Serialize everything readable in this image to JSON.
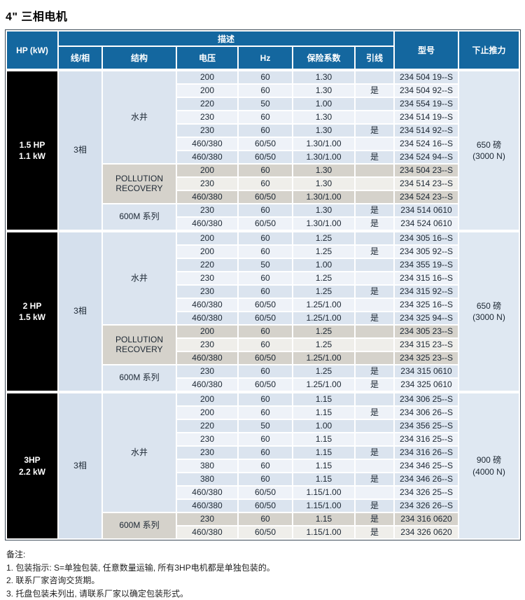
{
  "title": "4\" 三相电机",
  "table": {
    "headers": {
      "hp": "HP (kW)",
      "desc": "描述",
      "wire_phase": "线/相",
      "structure": "结构",
      "voltage": "电压",
      "hz": "Hz",
      "safety_factor": "保险系数",
      "lead": "引线",
      "model": "型号",
      "down_thrust": "下止推力"
    },
    "groups": [
      {
        "hp": "1.5 HP",
        "kw": "1.1 kW",
        "phase": "3相",
        "down_thrust_lb": "650 磅",
        "down_thrust_n": "(3000 N)",
        "blocks": [
          {
            "structure": "水井",
            "theme": "blue",
            "rows": [
              [
                "200",
                "60",
                "1.30",
                "",
                "234 504 19--S"
              ],
              [
                "200",
                "60",
                "1.30",
                "是",
                "234 504 92--S"
              ],
              [
                "220",
                "50",
                "1.00",
                "",
                "234 554 19--S"
              ],
              [
                "230",
                "60",
                "1.30",
                "",
                "234 514 19--S"
              ],
              [
                "230",
                "60",
                "1.30",
                "是",
                "234 514 92--S"
              ],
              [
                "460/380",
                "60/50",
                "1.30/1.00",
                "",
                "234 524 16--S"
              ],
              [
                "460/380",
                "60/50",
                "1.30/1.00",
                "是",
                "234 524 94--S"
              ]
            ]
          },
          {
            "structure": "POLLUTION RECOVERY",
            "theme": "gray",
            "rows": [
              [
                "200",
                "60",
                "1.30",
                "",
                "234 504 23--S"
              ],
              [
                "230",
                "60",
                "1.30",
                "",
                "234 514 23--S"
              ],
              [
                "460/380",
                "60/50",
                "1.30/1.00",
                "",
                "234 524 23--S"
              ]
            ]
          },
          {
            "structure": "600M 系列",
            "theme": "blue",
            "rows": [
              [
                "230",
                "60",
                "1.30",
                "是",
                "234 514 0610"
              ],
              [
                "460/380",
                "60/50",
                "1.30/1.00",
                "是",
                "234 524 0610"
              ]
            ]
          }
        ]
      },
      {
        "hp": "2 HP",
        "kw": "1.5 kW",
        "phase": "3相",
        "down_thrust_lb": "650 磅",
        "down_thrust_n": "(3000 N)",
        "blocks": [
          {
            "structure": "水井",
            "theme": "blue",
            "rows": [
              [
                "200",
                "60",
                "1.25",
                "",
                "234 305 16--S"
              ],
              [
                "200",
                "60",
                "1.25",
                "是",
                "234 305 92--S"
              ],
              [
                "220",
                "50",
                "1.00",
                "",
                "234 355 19--S"
              ],
              [
                "230",
                "60",
                "1.25",
                "",
                "234 315 16--S"
              ],
              [
                "230",
                "60",
                "1.25",
                "是",
                "234 315 92--S"
              ],
              [
                "460/380",
                "60/50",
                "1.25/1.00",
                "",
                "234 325 16--S"
              ],
              [
                "460/380",
                "60/50",
                "1.25/1.00",
                "是",
                "234 325 94--S"
              ]
            ]
          },
          {
            "structure": "POLLUTION RECOVERY",
            "theme": "gray",
            "rows": [
              [
                "200",
                "60",
                "1.25",
                "",
                "234 305 23--S"
              ],
              [
                "230",
                "60",
                "1.25",
                "",
                "234 315 23--S"
              ],
              [
                "460/380",
                "60/50",
                "1.25/1.00",
                "",
                "234 325 23--S"
              ]
            ]
          },
          {
            "structure": "600M 系列",
            "theme": "blue",
            "rows": [
              [
                "230",
                "60",
                "1.25",
                "是",
                "234 315 0610"
              ],
              [
                "460/380",
                "60/50",
                "1.25/1.00",
                "是",
                "234 325 0610"
              ]
            ]
          }
        ]
      },
      {
        "hp": "3HP",
        "kw": "2.2 kW",
        "phase": "3相",
        "down_thrust_lb": "900 磅",
        "down_thrust_n": "(4000 N)",
        "blocks": [
          {
            "structure": "水井",
            "theme": "blue",
            "rows": [
              [
                "200",
                "60",
                "1.15",
                "",
                "234 306 25--S"
              ],
              [
                "200",
                "60",
                "1.15",
                "是",
                "234 306 26--S"
              ],
              [
                "220",
                "50",
                "1.00",
                "",
                "234 356 25--S"
              ],
              [
                "230",
                "60",
                "1.15",
                "",
                "234 316 25--S"
              ],
              [
                "230",
                "60",
                "1.15",
                "是",
                "234 316 26--S"
              ],
              [
                "380",
                "60",
                "1.15",
                "",
                "234 346 25--S"
              ],
              [
                "380",
                "60",
                "1.15",
                "是",
                "234 346 26--S"
              ],
              [
                "460/380",
                "60/50",
                "1.15/1.00",
                "",
                "234 326 25--S"
              ],
              [
                "460/380",
                "60/50",
                "1.15/1.00",
                "是",
                "234 326 26--S"
              ]
            ]
          },
          {
            "structure": "600M 系列",
            "theme": "gray",
            "rows": [
              [
                "230",
                "60",
                "1.15",
                "是",
                "234 316 0620"
              ],
              [
                "460/380",
                "60/50",
                "1.15/1.00",
                "是",
                "234 326 0620"
              ]
            ]
          }
        ]
      }
    ]
  },
  "notes": {
    "title": "备注:",
    "items": [
      "1. 包装指示: S=单独包装, 任意数量运输, 所有3HP电机都是单独包装的。",
      "2. 联系厂家咨询交货期。",
      "3. 托盘包装未列出, 请联系厂家以确定包装形式。"
    ]
  }
}
